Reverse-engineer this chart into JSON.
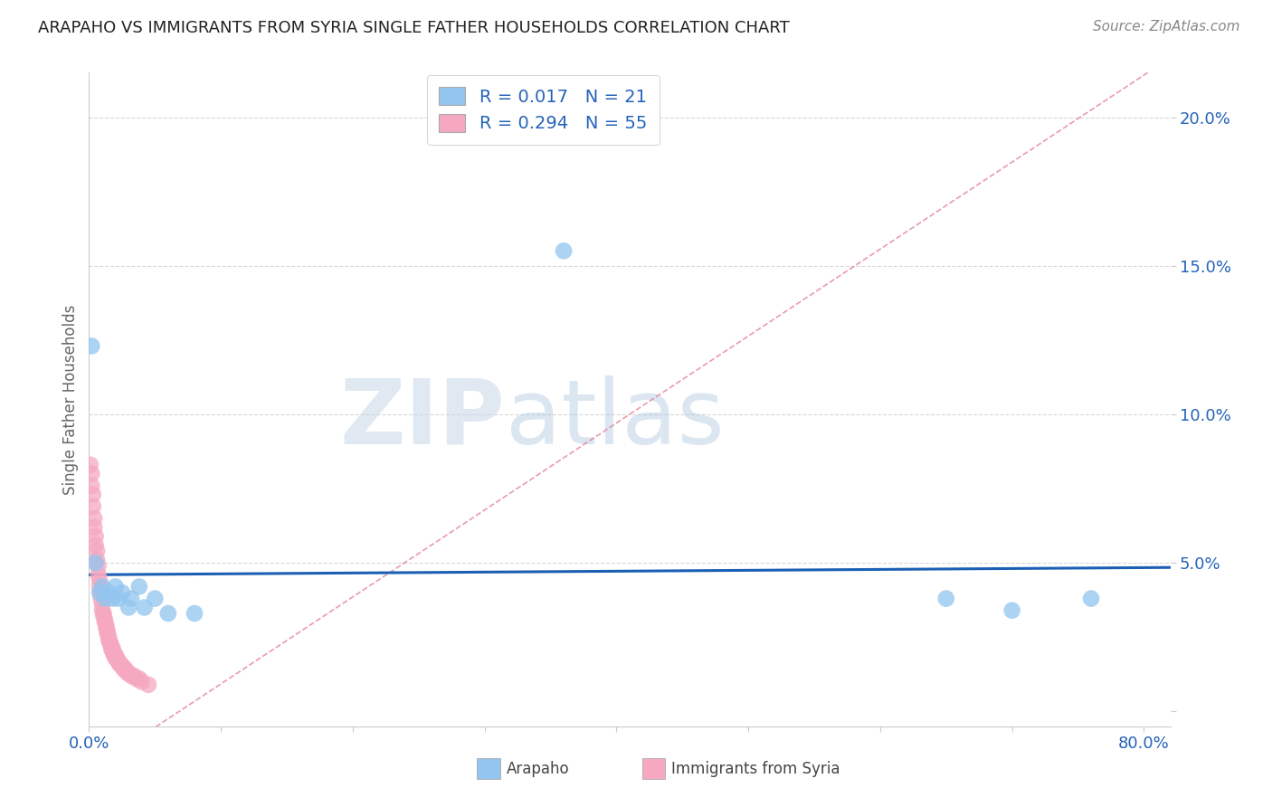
{
  "title": "ARAPAHO VS IMMIGRANTS FROM SYRIA SINGLE FATHER HOUSEHOLDS CORRELATION CHART",
  "source": "Source: ZipAtlas.com",
  "ylabel": "Single Father Households",
  "xlim": [
    0.0,
    0.82
  ],
  "ylim": [
    -0.005,
    0.215
  ],
  "legend1_r": "0.017",
  "legend1_n": "21",
  "legend2_r": "0.294",
  "legend2_n": "55",
  "arapaho_color": "#92C5F0",
  "syria_color": "#F5A8C0",
  "trendline_blue_color": "#1a5fb4",
  "trendline_pink_color": "#e07090",
  "watermark_zip": "ZIP",
  "watermark_atlas": "atlas",
  "arapaho_points": [
    [
      0.002,
      0.123
    ],
    [
      0.005,
      0.05
    ],
    [
      0.008,
      0.04
    ],
    [
      0.01,
      0.042
    ],
    [
      0.012,
      0.038
    ],
    [
      0.015,
      0.04
    ],
    [
      0.018,
      0.038
    ],
    [
      0.02,
      0.042
    ],
    [
      0.022,
      0.038
    ],
    [
      0.025,
      0.04
    ],
    [
      0.03,
      0.035
    ],
    [
      0.032,
      0.038
    ],
    [
      0.038,
      0.042
    ],
    [
      0.042,
      0.035
    ],
    [
      0.05,
      0.038
    ],
    [
      0.06,
      0.033
    ],
    [
      0.08,
      0.033
    ],
    [
      0.36,
      0.155
    ],
    [
      0.65,
      0.038
    ],
    [
      0.7,
      0.034
    ],
    [
      0.76,
      0.038
    ]
  ],
  "syria_points": [
    [
      0.001,
      0.083
    ],
    [
      0.002,
      0.08
    ],
    [
      0.002,
      0.076
    ],
    [
      0.003,
      0.073
    ],
    [
      0.003,
      0.069
    ],
    [
      0.004,
      0.065
    ],
    [
      0.004,
      0.062
    ],
    [
      0.005,
      0.059
    ],
    [
      0.005,
      0.056
    ],
    [
      0.006,
      0.054
    ],
    [
      0.006,
      0.051
    ],
    [
      0.007,
      0.049
    ],
    [
      0.007,
      0.046
    ],
    [
      0.008,
      0.044
    ],
    [
      0.008,
      0.042
    ],
    [
      0.009,
      0.04
    ],
    [
      0.009,
      0.038
    ],
    [
      0.01,
      0.036
    ],
    [
      0.01,
      0.034
    ],
    [
      0.011,
      0.033
    ],
    [
      0.011,
      0.032
    ],
    [
      0.012,
      0.031
    ],
    [
      0.012,
      0.03
    ],
    [
      0.013,
      0.029
    ],
    [
      0.013,
      0.028
    ],
    [
      0.014,
      0.027
    ],
    [
      0.014,
      0.026
    ],
    [
      0.015,
      0.025
    ],
    [
      0.015,
      0.024
    ],
    [
      0.016,
      0.023
    ],
    [
      0.016,
      0.023
    ],
    [
      0.017,
      0.022
    ],
    [
      0.017,
      0.021
    ],
    [
      0.018,
      0.021
    ],
    [
      0.018,
      0.02
    ],
    [
      0.019,
      0.019
    ],
    [
      0.02,
      0.019
    ],
    [
      0.02,
      0.018
    ],
    [
      0.021,
      0.018
    ],
    [
      0.022,
      0.017
    ],
    [
      0.022,
      0.017
    ],
    [
      0.023,
      0.016
    ],
    [
      0.024,
      0.016
    ],
    [
      0.025,
      0.015
    ],
    [
      0.026,
      0.015
    ],
    [
      0.027,
      0.014
    ],
    [
      0.028,
      0.014
    ],
    [
      0.029,
      0.013
    ],
    [
      0.03,
      0.013
    ],
    [
      0.032,
      0.012
    ],
    [
      0.034,
      0.012
    ],
    [
      0.036,
      0.011
    ],
    [
      0.038,
      0.011
    ],
    [
      0.04,
      0.01
    ],
    [
      0.045,
      0.009
    ]
  ],
  "xtick_positions": [
    0.0,
    0.1,
    0.2,
    0.3,
    0.4,
    0.5,
    0.6,
    0.7,
    0.8
  ],
  "ytick_values": [
    0.0,
    0.05,
    0.1,
    0.15,
    0.2
  ],
  "ytick_labels": [
    "",
    "5.0%",
    "10.0%",
    "15.0%",
    "20.0%"
  ],
  "grid_color": "#d8d8d8",
  "spine_color": "#cccccc"
}
